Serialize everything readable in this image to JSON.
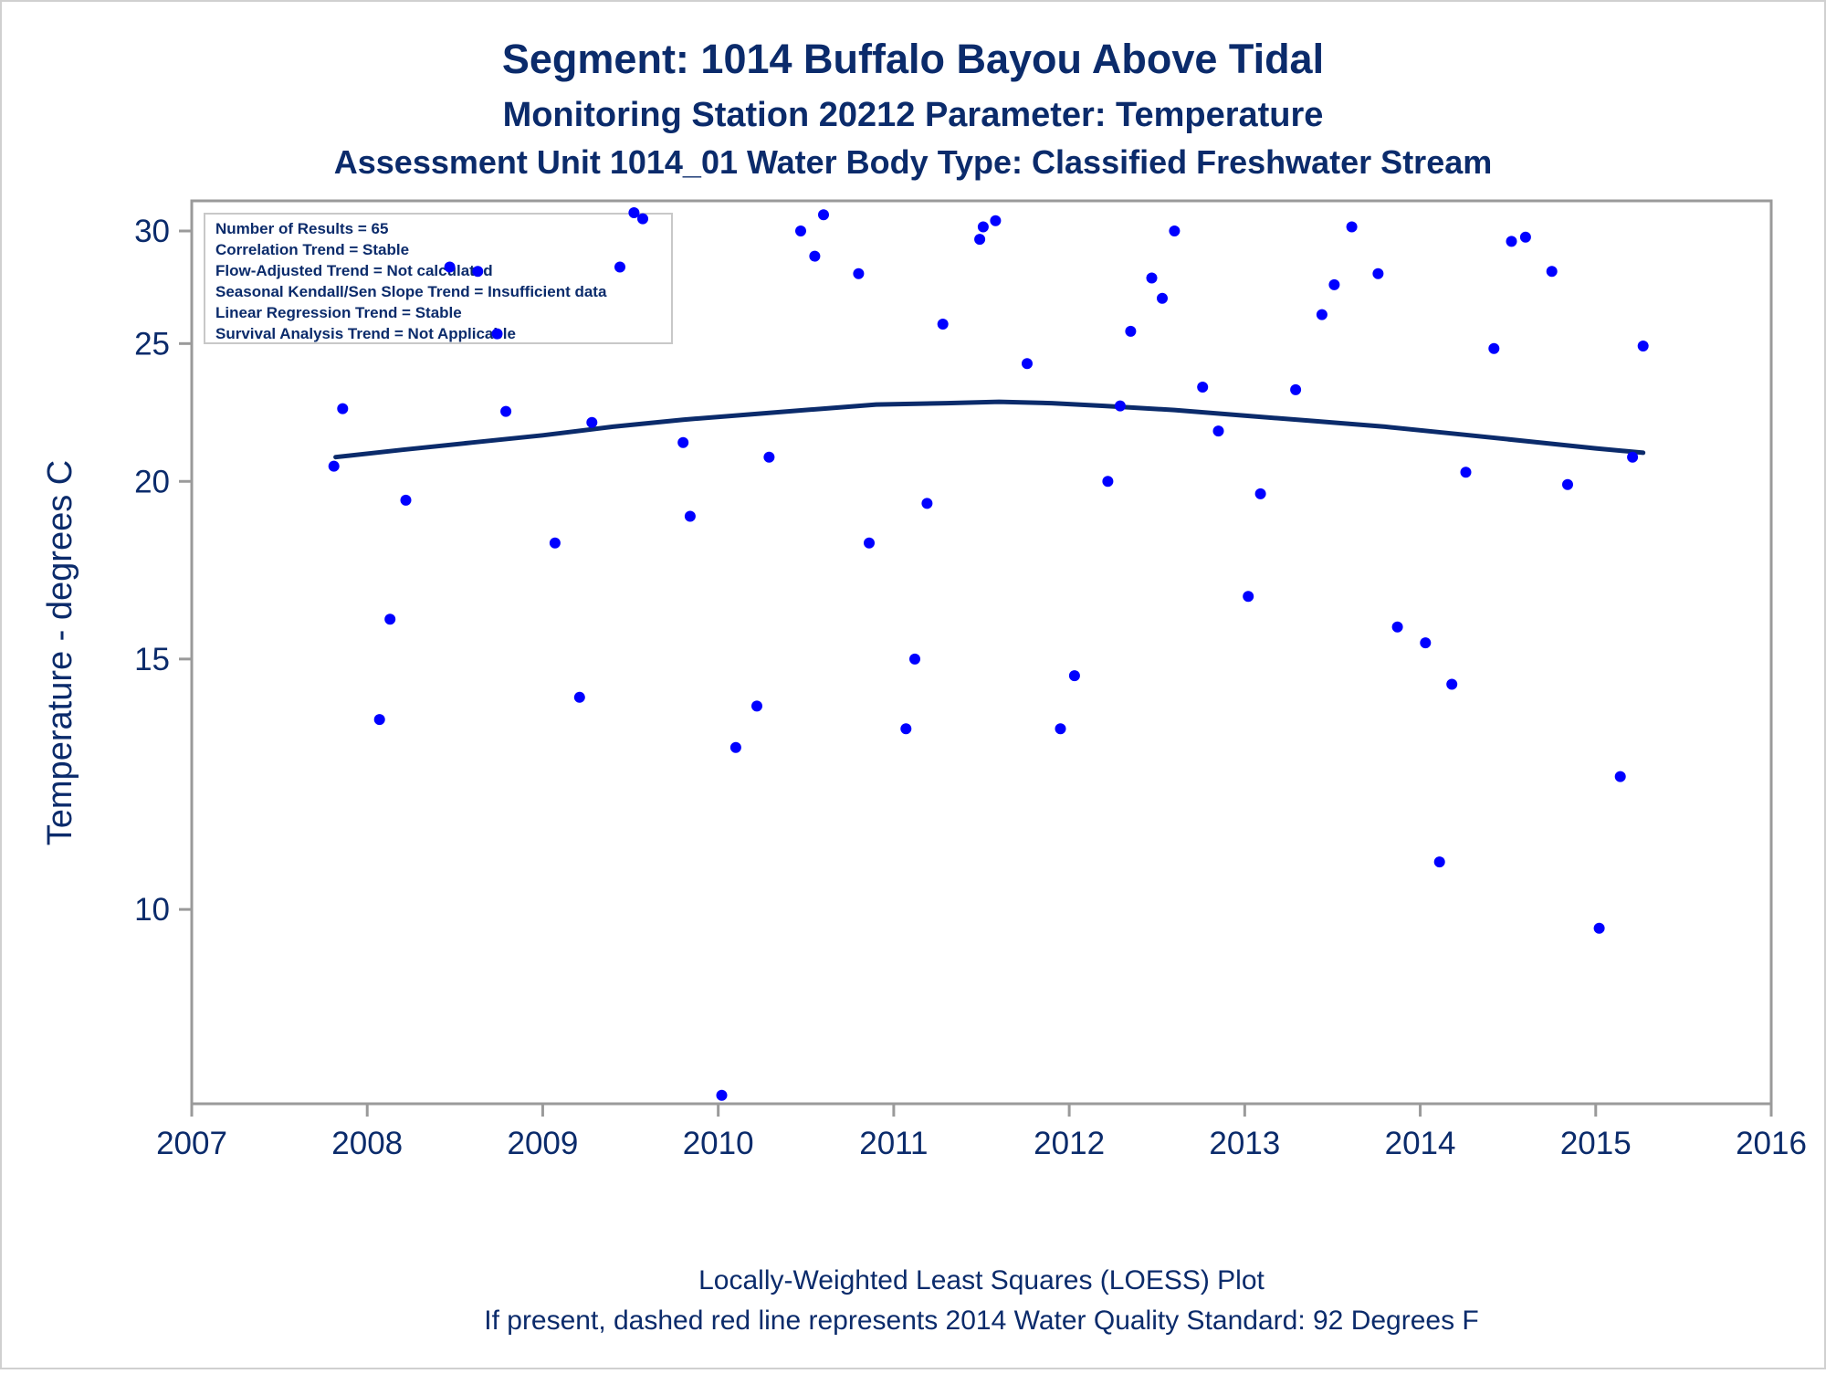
{
  "titles": {
    "line1": "Segment: 1014  Buffalo Bayou Above Tidal",
    "line2": "Monitoring Station 20212 Parameter: Temperature",
    "line3": "Assessment Unit 1014_01   Water Body Type: Classified Freshwater Stream"
  },
  "annotation": [
    "Number of Results = 65",
    "Correlation Trend = Stable",
    "Flow-Adjusted Trend = Not calculated",
    "Seasonal Kendall/Sen Slope Trend = Insufficient data",
    "Linear Regression Trend = Stable",
    "Survival Analysis Trend = Not Applicable"
  ],
  "footnotes": {
    "line1": "Locally-Weighted Least Squares (LOESS) Plot",
    "line2": "If present, dashed red line represents 2014 Water Quality Standard: 92   Degrees F"
  },
  "colors": {
    "text": "#0b2b6b",
    "points": "#0000ff",
    "loess": "#0b2b6b",
    "frame": "#9a9a9a"
  },
  "chart_data": {
    "type": "scatter",
    "ylabel": "Temperature - degrees C",
    "xlabel": "",
    "y_scale": "log",
    "xlim": [
      2007,
      2016
    ],
    "ylim": [
      7.3,
      31.5
    ],
    "x_ticks": [
      2007,
      2008,
      2009,
      2010,
      2011,
      2012,
      2013,
      2014,
      2015,
      2016
    ],
    "y_ticks": [
      10,
      15,
      20,
      25,
      30
    ],
    "grid": false,
    "series": [
      {
        "kind": "points",
        "x": [
          2007.81,
          2007.86,
          2008.07,
          2008.13,
          2008.22,
          2008.47,
          2008.63,
          2008.74,
          2008.79,
          2009.07,
          2009.21,
          2009.28,
          2009.44,
          2009.52,
          2009.57,
          2009.8,
          2009.84,
          2010.02,
          2010.1,
          2010.22,
          2010.29,
          2010.47,
          2010.55,
          2010.6,
          2010.8,
          2010.86,
          2011.07,
          2011.12,
          2011.19,
          2011.28,
          2011.49,
          2011.51,
          2011.58,
          2011.76,
          2011.95,
          2012.03,
          2012.22,
          2012.29,
          2012.35,
          2012.47,
          2012.53,
          2012.6,
          2012.76,
          2012.85,
          2013.02,
          2013.09,
          2013.29,
          2013.44,
          2013.51,
          2013.61,
          2013.76,
          2013.87,
          2014.03,
          2014.11,
          2014.18,
          2014.26,
          2014.42,
          2014.52,
          2014.6,
          2014.75,
          2014.84,
          2015.02,
          2015.14,
          2015.21,
          2015.27
        ],
        "y": [
          20.5,
          22.5,
          13.6,
          16.0,
          19.4,
          28.3,
          28.1,
          25.4,
          22.4,
          18.1,
          14.1,
          22.0,
          28.3,
          30.9,
          30.6,
          21.3,
          18.9,
          7.4,
          13.0,
          13.9,
          20.8,
          30.0,
          28.8,
          30.8,
          28.0,
          18.1,
          13.4,
          15.0,
          19.3,
          25.8,
          29.6,
          30.2,
          30.5,
          24.2,
          13.4,
          14.6,
          20.0,
          22.6,
          25.5,
          27.8,
          26.9,
          30.0,
          23.3,
          21.7,
          16.6,
          19.6,
          23.2,
          26.2,
          27.5,
          30.2,
          28.0,
          15.8,
          15.4,
          10.8,
          14.4,
          20.3,
          24.8,
          29.5,
          29.7,
          28.1,
          19.9,
          9.7,
          12.4,
          20.8,
          24.9
        ]
      },
      {
        "kind": "loess",
        "x": [
          2007.82,
          2008.2,
          2008.6,
          2009.0,
          2009.4,
          2009.8,
          2010.2,
          2010.6,
          2010.9,
          2011.3,
          2011.6,
          2011.9,
          2012.2,
          2012.6,
          2013.0,
          2013.4,
          2013.8,
          2014.2,
          2014.6,
          2015.0,
          2015.27
        ],
        "y": [
          20.8,
          21.05,
          21.3,
          21.55,
          21.85,
          22.1,
          22.3,
          22.5,
          22.65,
          22.7,
          22.75,
          22.7,
          22.6,
          22.45,
          22.25,
          22.05,
          21.85,
          21.6,
          21.35,
          21.1,
          20.95
        ]
      }
    ]
  }
}
